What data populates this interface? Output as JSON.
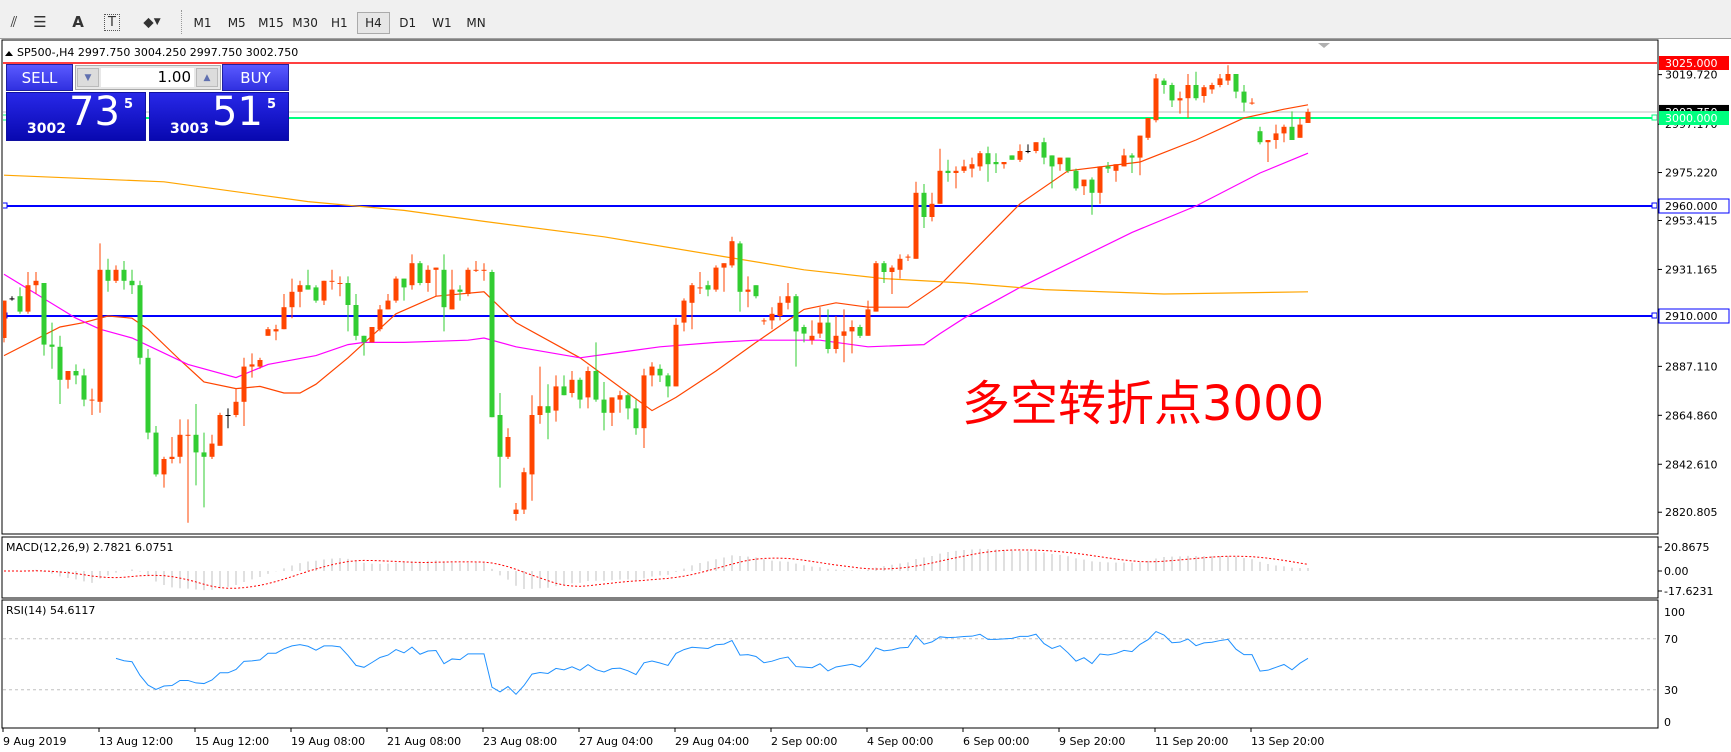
{
  "toolbar": {
    "icons": [
      "fibonacci-fan-icon",
      "fibonacci-lines-icon",
      "text-icon",
      "text-label-icon",
      "arrows-icon"
    ],
    "timeframes": [
      "M1",
      "M5",
      "M15",
      "M30",
      "H1",
      "H4",
      "D1",
      "W1",
      "MN"
    ],
    "selected_timeframe": "H4"
  },
  "chart": {
    "header": "SP500-,H4  2997.750 3004.250 2997.750 3002.750",
    "annotation": "多空转折点3000",
    "colors": {
      "bull": "#ff4500",
      "bear": "#32cd32",
      "fast_ma": "#ff4500",
      "mid_ma": "#ff00ff",
      "slow_ma": "#ffa500",
      "resistance": "#ff0000",
      "pivot": "#00ff7f",
      "support": "#0000ff",
      "rsi": "#1e90ff",
      "macd_hist": "#c0c0c0",
      "macd_signal": "#ff0000",
      "annotation": "#ff0000"
    },
    "price_labels": [
      "3019.720",
      "2997.170",
      "2975.220",
      "2953.415",
      "2931.165",
      "2887.110",
      "2864.860",
      "2842.610",
      "2820.805"
    ],
    "price_label_values": [
      3019.72,
      2997.17,
      2975.22,
      2953.415,
      2931.165,
      2887.11,
      2864.86,
      2842.61,
      2820.805
    ],
    "hlines": [
      {
        "price": 3025,
        "label": "3025.000",
        "kind": "resistance"
      },
      {
        "price": 3000,
        "label": "3000.000",
        "kind": "pivot"
      },
      {
        "price": 2960,
        "label": "2960.000",
        "kind": "support"
      },
      {
        "price": 2910,
        "label": "2910.000",
        "kind": "support"
      }
    ],
    "current_price": {
      "price": 3002.75,
      "label": "3002.750"
    },
    "time_labels": [
      "9 Aug 2019",
      "13 Aug 12:00",
      "15 Aug 12:00",
      "19 Aug 08:00",
      "21 Aug 08:00",
      "23 Aug 08:00",
      "27 Aug 04:00",
      "29 Aug 04:00",
      "2 Sep 00:00",
      "4 Sep 00:00",
      "6 Sep 00:00",
      "9 Sep 20:00",
      "11 Sep 20:00",
      "13 Sep 20:00"
    ]
  },
  "trade_panel": {
    "sell_label": "SELL",
    "buy_label": "BUY",
    "lot": "1.00",
    "sell_price": {
      "prefix": "3002",
      "big": "73",
      "sup": "5"
    },
    "buy_price": {
      "prefix": "3003",
      "big": "51",
      "sup": "5"
    }
  },
  "macd": {
    "header": "MACD(12,26,9) 2.7821 6.0751",
    "scale_labels": [
      "20.8675",
      "0.00",
      "-17.6231"
    ]
  },
  "rsi": {
    "header": "RSI(14) 54.6117",
    "scale_labels": [
      "100",
      "70",
      "30",
      "0"
    ],
    "levels": [
      70,
      30
    ]
  },
  "chart_data": {
    "type": "candlestick",
    "symbol": "SP500-",
    "timeframe": "H4",
    "ylim": [
      2811,
      3033
    ],
    "candles": [
      [
        2900,
        2917,
        2898,
        2917
      ],
      [
        2918,
        2919,
        2917,
        2918
      ],
      [
        2919,
        2923,
        2911,
        2912
      ],
      [
        2912,
        2930,
        2911,
        2924
      ],
      [
        2924,
        2930,
        2920,
        2926
      ],
      [
        2925,
        2925,
        2892,
        2897
      ],
      [
        2897,
        2907,
        2886,
        2896
      ],
      [
        2896,
        2901,
        2870,
        2881
      ],
      [
        2881,
        2885,
        2877,
        2885
      ],
      [
        2885,
        2888,
        2879,
        2883
      ],
      [
        2883,
        2886,
        2869,
        2872
      ],
      [
        2872,
        2877,
        2865,
        2872
      ],
      [
        2871,
        2943,
        2866,
        2931
      ],
      [
        2931,
        2936,
        2921,
        2926
      ],
      [
        2926,
        2933,
        2925,
        2931
      ],
      [
        2931,
        2935,
        2922,
        2926
      ],
      [
        2926,
        2931,
        2920,
        2924
      ],
      [
        2924,
        2926,
        2888,
        2891
      ],
      [
        2891,
        2895,
        2854,
        2857
      ],
      [
        2857,
        2860,
        2837,
        2838
      ],
      [
        2838,
        2846,
        2832,
        2845
      ],
      [
        2845,
        2855,
        2843,
        2846
      ],
      [
        2846,
        2863,
        2843,
        2856
      ],
      [
        2856,
        2863,
        2816,
        2856
      ],
      [
        2856,
        2870,
        2833,
        2848
      ],
      [
        2848,
        2857,
        2823,
        2846
      ],
      [
        2846,
        2856,
        2845,
        2852
      ],
      [
        2851,
        2866,
        2851,
        2865
      ],
      [
        2865,
        2868,
        2859,
        2865
      ],
      [
        2865,
        2877,
        2864,
        2871
      ],
      [
        2871,
        2891,
        2860,
        2887
      ],
      [
        2887,
        2893,
        2882,
        2888
      ],
      [
        2887,
        2891,
        2886,
        2890
      ],
      [
        2901,
        2905,
        2901,
        2904
      ],
      [
        2903,
        2906,
        2899,
        2904
      ],
      [
        2904,
        2920,
        2904,
        2914
      ],
      [
        2914,
        2927,
        2909,
        2921
      ],
      [
        2921,
        2926,
        2914,
        2924
      ],
      [
        2924,
        2931,
        2922,
        2922
      ],
      [
        2923,
        2924,
        2916,
        2917
      ],
      [
        2917,
        2926,
        2915,
        2926
      ],
      [
        2926,
        2931,
        2922,
        2926
      ],
      [
        2925,
        2928,
        2919,
        2925
      ],
      [
        2925,
        2928,
        2903,
        2915
      ],
      [
        2915,
        2920,
        2899,
        2901
      ],
      [
        2901,
        2901,
        2892,
        2898
      ],
      [
        2898,
        2905,
        2898,
        2905
      ],
      [
        2904,
        2915,
        2903,
        2913
      ],
      [
        2913,
        2920,
        2913,
        2917
      ],
      [
        2917,
        2928,
        2916,
        2927
      ],
      [
        2927,
        2927,
        2917,
        2923
      ],
      [
        2924,
        2938,
        2922,
        2934
      ],
      [
        2934,
        2935,
        2924,
        2925
      ],
      [
        2925,
        2933,
        2921,
        2931
      ],
      [
        2931,
        2932,
        2919,
        2932
      ],
      [
        2931,
        2938,
        2903,
        2914
      ],
      [
        2913,
        2931,
        2913,
        2922
      ],
      [
        2922,
        2924,
        2917,
        2921
      ],
      [
        2920,
        2932,
        2919,
        2931
      ],
      [
        2931,
        2935,
        2930,
        2931
      ],
      [
        2931,
        2934,
        2926,
        2931
      ],
      [
        2930,
        2931,
        2864,
        2864
      ],
      [
        2865,
        2875,
        2832,
        2846
      ],
      [
        2846,
        2859,
        2845,
        2855
      ],
      [
        2820,
        2825,
        2817,
        2822
      ],
      [
        2822,
        2841,
        2820,
        2839
      ],
      [
        2838,
        2874,
        2826,
        2865
      ],
      [
        2865,
        2887,
        2861,
        2869
      ],
      [
        2869,
        2879,
        2854,
        2866
      ],
      [
        2867,
        2883,
        2862,
        2878
      ],
      [
        2878,
        2883,
        2874,
        2874
      ],
      [
        2875,
        2885,
        2873,
        2881
      ],
      [
        2881,
        2882,
        2868,
        2872
      ],
      [
        2873,
        2887,
        2868,
        2885
      ],
      [
        2885,
        2898,
        2871,
        2872
      ],
      [
        2872,
        2880,
        2858,
        2866
      ],
      [
        2866,
        2873,
        2860,
        2873
      ],
      [
        2872,
        2876,
        2866,
        2874
      ],
      [
        2874,
        2875,
        2863,
        2868
      ],
      [
        2868,
        2872,
        2856,
        2859
      ],
      [
        2859,
        2886,
        2850,
        2883
      ],
      [
        2883,
        2889,
        2878,
        2887
      ],
      [
        2886,
        2888,
        2880,
        2883
      ],
      [
        2883,
        2884,
        2873,
        2878
      ],
      [
        2878,
        2909,
        2878,
        2906
      ],
      [
        2907,
        2918,
        2903,
        2917
      ],
      [
        2916,
        2925,
        2904,
        2924
      ],
      [
        2923,
        2930,
        2920,
        2923
      ],
      [
        2924,
        2926,
        2919,
        2922
      ],
      [
        2922,
        2933,
        2921,
        2932
      ],
      [
        2932,
        2934,
        2921,
        2934
      ],
      [
        2933,
        2946,
        2932,
        2944
      ],
      [
        2943,
        2944,
        2912,
        2921
      ],
      [
        2921,
        2928,
        2914,
        2922
      ],
      [
        2924,
        2924,
        2918,
        2919
      ],
      [
        2908,
        2909,
        2906,
        2908
      ],
      [
        2908,
        2914,
        2904,
        2911
      ],
      [
        2910,
        2919,
        2908,
        2916
      ],
      [
        2916,
        2925,
        2913,
        2919
      ],
      [
        2919,
        2920,
        2887,
        2903
      ],
      [
        2905,
        2906,
        2898,
        2902
      ],
      [
        2899,
        2908,
        2897,
        2901
      ],
      [
        2902,
        2914,
        2900,
        2907
      ],
      [
        2907,
        2913,
        2893,
        2895
      ],
      [
        2895,
        2910,
        2893,
        2901
      ],
      [
        2901,
        2913,
        2889,
        2903
      ],
      [
        2903,
        2908,
        2893,
        2905
      ],
      [
        2905,
        2906,
        2900,
        2901
      ],
      [
        2901,
        2917,
        2901,
        2913
      ],
      [
        2912,
        2935,
        2912,
        2934
      ],
      [
        2934,
        2935,
        2925,
        2930
      ],
      [
        2930,
        2933,
        2920,
        2932
      ],
      [
        2931,
        2938,
        2927,
        2936
      ],
      [
        2937,
        2938,
        2935,
        2937
      ],
      [
        2936,
        2971,
        2936,
        2966
      ],
      [
        2966,
        2970,
        2950,
        2955
      ],
      [
        2955,
        2966,
        2953,
        2961
      ],
      [
        2961,
        2986,
        2961,
        2976
      ],
      [
        2976,
        2981,
        2971,
        2975
      ],
      [
        2975,
        2978,
        2968,
        2976
      ],
      [
        2976,
        2981,
        2975,
        2978
      ],
      [
        2977,
        2982,
        2973,
        2979
      ],
      [
        2978,
        2985,
        2976,
        2984
      ],
      [
        2984,
        2987,
        2971,
        2979
      ],
      [
        2980,
        2984,
        2975,
        2979
      ],
      [
        2979,
        2980,
        2977,
        2980
      ],
      [
        2983,
        2983,
        2981,
        2981
      ],
      [
        2981,
        2988,
        2980,
        2985
      ],
      [
        2985,
        2988,
        2984,
        2985
      ],
      [
        2985,
        2989,
        2984,
        2989
      ],
      [
        2989,
        2991,
        2979,
        2982
      ],
      [
        2983,
        2983,
        2968,
        2978
      ],
      [
        2979,
        2982,
        2976,
        2982
      ],
      [
        2982,
        2982,
        2975,
        2976
      ],
      [
        2976,
        2977,
        2967,
        2968
      ],
      [
        2969,
        2972,
        2965,
        2972
      ],
      [
        2972,
        2973,
        2956,
        2966
      ],
      [
        2966,
        2978,
        2961,
        2978
      ],
      [
        2978,
        2980,
        2975,
        2977
      ],
      [
        2976,
        2979,
        2971,
        2979
      ],
      [
        2978,
        2986,
        2978,
        2983
      ],
      [
        2983,
        2984,
        2975,
        2982
      ],
      [
        2982,
        2992,
        2974,
        2992
      ],
      [
        2991,
        3000,
        2990,
        3000
      ],
      [
        2999,
        3020,
        2998,
        3018
      ],
      [
        3017,
        3018,
        3011,
        3015
      ],
      [
        3015,
        3016,
        3005,
        3008
      ],
      [
        3008,
        3012,
        3002,
        3009
      ],
      [
        3009,
        3020,
        3000,
        3015
      ],
      [
        3015,
        3021,
        3008,
        3009
      ],
      [
        3010,
        3015,
        3007,
        3014
      ],
      [
        3013,
        3016,
        3011,
        3015
      ],
      [
        3015,
        3020,
        3014,
        3018
      ],
      [
        3017,
        3024,
        3015,
        3020
      ],
      [
        3020,
        3020,
        3009,
        3012
      ],
      [
        3012,
        3015,
        3003,
        3007
      ],
      [
        3007,
        3009,
        3006,
        3007
      ],
      [
        2994,
        2996,
        2988,
        2989
      ],
      [
        2989,
        2990,
        2980,
        2990
      ],
      [
        2990,
        2997,
        2986,
        2993
      ],
      [
        2993,
        2997,
        2989,
        2996
      ],
      [
        2996,
        3003,
        2990,
        2990
      ],
      [
        2991,
        3000,
        2991,
        2997
      ],
      [
        2997.75,
        3004.25,
        2997.75,
        3002.75
      ]
    ],
    "moving_averages": [
      {
        "kind": "fast_ma",
        "points": [
          [
            0,
            2892
          ],
          [
            7,
            2905
          ],
          [
            10,
            2907
          ],
          [
            13,
            2910
          ],
          [
            16,
            2909
          ],
          [
            18,
            2904
          ],
          [
            22,
            2890
          ],
          [
            25,
            2880
          ],
          [
            29,
            2877
          ],
          [
            32,
            2878
          ],
          [
            35,
            2875
          ],
          [
            37,
            2875
          ],
          [
            39,
            2879
          ],
          [
            43,
            2891
          ],
          [
            46,
            2901
          ],
          [
            49,
            2911
          ],
          [
            54,
            2919
          ],
          [
            60,
            2921
          ],
          [
            62,
            2914
          ],
          [
            64,
            2907
          ],
          [
            72,
            2891
          ],
          [
            81,
            2867
          ],
          [
            84,
            2873
          ],
          [
            89,
            2885
          ],
          [
            94,
            2898
          ],
          [
            100,
            2913
          ],
          [
            104,
            2916
          ],
          [
            108,
            2914
          ],
          [
            113,
            2914
          ],
          [
            117,
            2924
          ],
          [
            127,
            2961
          ],
          [
            133,
            2976
          ],
          [
            142,
            2980
          ],
          [
            149,
            2990
          ],
          [
            155,
            3000
          ],
          [
            160,
            3004
          ],
          [
            163,
            3006
          ]
        ]
      },
      {
        "kind": "mid_ma",
        "points": [
          [
            0,
            2929
          ],
          [
            9,
            2909
          ],
          [
            12,
            2904
          ],
          [
            16,
            2900
          ],
          [
            23,
            2888
          ],
          [
            29,
            2882
          ],
          [
            33,
            2888
          ],
          [
            39,
            2892
          ],
          [
            43,
            2897
          ],
          [
            45,
            2898
          ],
          [
            50,
            2898
          ],
          [
            58,
            2899
          ],
          [
            60,
            2900
          ],
          [
            64,
            2896
          ],
          [
            72,
            2891
          ],
          [
            76,
            2893
          ],
          [
            82,
            2896
          ],
          [
            89,
            2898
          ],
          [
            94,
            2899
          ],
          [
            102,
            2899
          ],
          [
            108,
            2896
          ],
          [
            115,
            2897
          ],
          [
            117,
            2902
          ],
          [
            120,
            2909
          ],
          [
            127,
            2923
          ],
          [
            141,
            2948
          ],
          [
            149,
            2960
          ],
          [
            157,
            2975
          ],
          [
            163,
            2984
          ]
        ]
      },
      {
        "kind": "slow_ma",
        "points": [
          [
            0,
            2974
          ],
          [
            20,
            2971
          ],
          [
            38,
            2962
          ],
          [
            50,
            2958
          ],
          [
            60,
            2953
          ],
          [
            75,
            2946
          ],
          [
            90,
            2937
          ],
          [
            100,
            2931
          ],
          [
            110,
            2927
          ],
          [
            120,
            2925
          ],
          [
            130,
            2922
          ],
          [
            145,
            2920
          ],
          [
            163,
            2921
          ]
        ]
      }
    ]
  }
}
